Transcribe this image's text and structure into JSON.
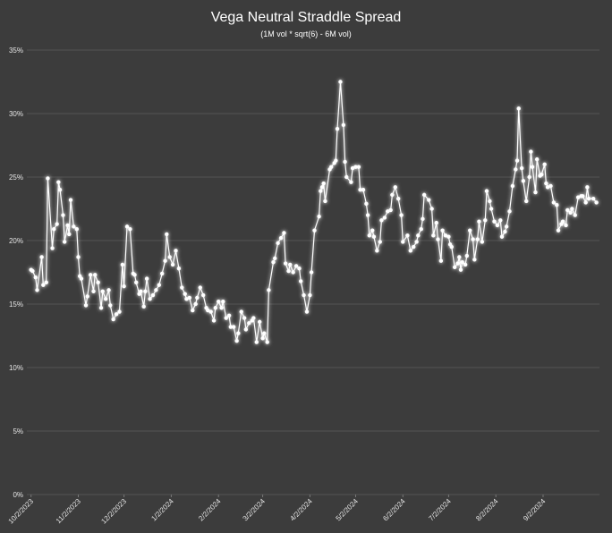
{
  "chart_data": {
    "type": "line",
    "title": "Vega Neutral Straddle Spread",
    "subtitle": "(1M vol * sqrt(6) - 6M vol)",
    "series": [
      {
        "color": "#ffffff",
        "x": [
          "10/2/2023",
          "10/3/2023",
          "10/5/2023",
          "10/6/2023",
          "10/9/2023",
          "10/10/2023",
          "10/12/2023",
          "10/13/2023",
          "10/16/2023",
          "10/17/2023",
          "10/19/2023",
          "10/20/2023",
          "10/21/2023",
          "10/23/2023",
          "10/24/2023",
          "10/26/2023",
          "10/27/2023",
          "10/28/2023",
          "10/30/2023",
          "11/1/2023",
          "11/2/2023",
          "11/3/2023",
          "11/4/2023",
          "11/7/2023",
          "11/8/2023",
          "11/10/2023",
          "11/12/2023",
          "11/13/2023",
          "11/15/2023",
          "11/17/2023",
          "11/18/2023",
          "11/20/2023",
          "11/22/2023",
          "11/23/2023",
          "11/25/2023",
          "11/27/2023",
          "11/29/2023",
          "12/1/2023",
          "12/2/2023",
          "12/4/2023",
          "12/6/2023",
          "12/8/2023",
          "12/9/2023",
          "12/10/2023",
          "12/12/2023",
          "12/13/2023",
          "12/15/2023",
          "12/16/2023",
          "12/17/2023",
          "12/19/2023",
          "12/21/2023",
          "12/23/2023",
          "12/25/2023",
          "12/27/2023",
          "12/29/2023",
          "12/30/2023",
          "1/1/2024",
          "1/3/2024",
          "1/5/2024",
          "1/7/2024",
          "1/9/2024",
          "1/11/2024",
          "1/12/2024",
          "1/14/2024",
          "1/16/2024",
          "1/18/2024",
          "1/19/2024",
          "1/21/2024",
          "1/23/2024",
          "1/25/2024",
          "1/26/2024",
          "1/28/2024",
          "1/30/2024",
          "1/31/2024",
          "2/2/2024",
          "2/4/2024",
          "2/5/2024",
          "2/7/2024",
          "2/9/2024",
          "2/10/2024",
          "2/12/2024",
          "2/14/2024",
          "2/15/2024",
          "2/17/2024",
          "2/19/2024",
          "2/20/2024",
          "2/22/2024",
          "2/24/2024",
          "2/25/2024",
          "2/27/2024",
          "2/29/2024",
          "3/2/2024",
          "3/3/2024",
          "3/5/2024",
          "3/6/2024",
          "3/9/2024",
          "3/10/2024",
          "3/12/2024",
          "3/14/2024",
          "3/16/2024",
          "3/17/2024",
          "3/19/2024",
          "3/20/2024",
          "3/22/2024",
          "3/24/2024",
          "3/26/2024",
          "3/27/2024",
          "3/29/2024",
          "3/31/2024",
          "4/2/2024",
          "4/3/2024",
          "4/5/2024",
          "4/8/2024",
          "4/9/2024",
          "4/10/2024",
          "4/11/2024",
          "4/12/2024",
          "4/15/2024",
          "4/16/2024",
          "4/18/2024",
          "4/19/2024",
          "4/20/2024",
          "4/22/2024",
          "4/24/2024",
          "4/25/2024",
          "4/26/2024",
          "4/29/2024",
          "4/30/2024",
          "5/2/2024",
          "5/4/2024",
          "5/5/2024",
          "5/7/2024",
          "5/9/2024",
          "5/10/2024",
          "5/11/2024",
          "5/13/2024",
          "5/14/2024",
          "5/16/2024",
          "5/18/2024",
          "5/19/2024",
          "5/21/2024",
          "5/23/2024",
          "5/25/2024",
          "5/26/2024",
          "5/28/2024",
          "5/30/2024",
          "6/1/2024",
          "6/2/2024",
          "6/5/2024",
          "6/7/2024",
          "6/9/2024",
          "6/11/2024",
          "6/12/2024",
          "6/14/2024",
          "6/15/2024",
          "6/16/2024",
          "6/19/2024",
          "6/21/2024",
          "6/22/2024",
          "6/24/2024",
          "6/25/2024",
          "6/27/2024",
          "6/28/2024",
          "6/30/2024",
          "7/2/2024",
          "7/3/2024",
          "7/4/2024",
          "7/6/2024",
          "7/8/2024",
          "7/9/2024",
          "7/10/2024",
          "7/11/2024",
          "7/13/2024",
          "7/14/2024",
          "7/16/2024",
          "7/18/2024",
          "7/19/2024",
          "7/21/2024",
          "7/22/2024",
          "7/24/2024",
          "7/26/2024",
          "7/27/2024",
          "7/29/2024",
          "7/30/2024",
          "8/1/2024",
          "8/3/2024",
          "8/5/2024",
          "8/6/2024",
          "8/8/2024",
          "8/9/2024",
          "8/11/2024",
          "8/13/2024",
          "8/15/2024",
          "8/16/2024",
          "8/17/2024",
          "8/19/2024",
          "8/20/2024",
          "8/22/2024",
          "8/24/2024",
          "8/25/2024",
          "8/26/2024",
          "8/28/2024",
          "8/29/2024",
          "8/31/2024",
          "9/1/2024",
          "9/3/2024",
          "9/4/2024",
          "9/5/2024",
          "9/7/2024",
          "9/9/2024",
          "9/11/2024",
          "9/12/2024",
          "9/14/2024",
          "9/15/2024",
          "9/17/2024",
          "9/18/2024",
          "9/20/2024",
          "9/21/2024",
          "9/23/2024",
          "9/25/2024",
          "9/27/2024",
          "9/28/2024",
          "9/30/2024",
          "10/1/2024",
          "10/2/2024",
          "10/5/2024",
          "10/7/2024"
        ],
        "values": [
          17.7,
          17.6,
          17.1,
          16.1,
          18.7,
          16.5,
          16.7,
          24.9,
          19.4,
          20.9,
          21.3,
          24.6,
          24.0,
          22.0,
          19.9,
          21.2,
          20.5,
          23.2,
          21.1,
          20.9,
          18.7,
          17.2,
          17.0,
          14.9,
          15.6,
          17.3,
          16.0,
          17.3,
          16.7,
          14.7,
          16.0,
          15.4,
          16.1,
          14.9,
          13.8,
          14.2,
          14.4,
          18.1,
          16.4,
          21.1,
          20.9,
          17.4,
          17.3,
          16.7,
          15.8,
          16.0,
          14.8,
          16.0,
          17.0,
          15.4,
          15.7,
          16.1,
          16.5,
          17.4,
          18.4,
          20.5,
          18.7,
          18.1,
          19.2,
          17.8,
          16.3,
          15.8,
          15.4,
          15.5,
          14.5,
          15.0,
          15.5,
          16.3,
          15.7,
          14.7,
          14.5,
          14.4,
          13.7,
          14.7,
          15.2,
          14.7,
          15.2,
          13.9,
          14.1,
          13.2,
          13.2,
          12.1,
          12.7,
          14.4,
          13.9,
          13.0,
          13.5,
          13.7,
          13.9,
          12.0,
          13.6,
          12.3,
          12.7,
          12.0,
          16.1,
          18.3,
          18.6,
          19.8,
          20.2,
          20.6,
          18.2,
          17.6,
          18.1,
          17.5,
          18.0,
          17.8,
          16.8,
          15.7,
          14.4,
          15.7,
          17.5,
          20.8,
          21.9,
          23.9,
          24.2,
          24.5,
          23.1,
          25.6,
          25.8,
          26.1,
          26.3,
          28.8,
          32.5,
          29.1,
          26.2,
          25.0,
          24.6,
          25.7,
          25.8,
          25.8,
          24.0,
          24.0,
          22.9,
          22.0,
          20.4,
          20.8,
          20.3,
          19.2,
          19.9,
          21.6,
          21.8,
          22.3,
          22.4,
          23.6,
          24.2,
          23.3,
          22.0,
          19.9,
          20.4,
          19.2,
          19.5,
          19.9,
          20.4,
          20.9,
          21.7,
          23.6,
          23.2,
          22.5,
          20.4,
          21.4,
          20.1,
          18.4,
          20.8,
          20.4,
          20.3,
          19.7,
          19.5,
          17.9,
          18.2,
          18.7,
          17.7,
          18.3,
          18.1,
          18.8,
          20.8,
          20.1,
          18.5,
          20.1,
          21.5,
          19.9,
          21.6,
          23.9,
          23.1,
          22.5,
          21.5,
          21.2,
          21.6,
          20.3,
          20.7,
          21.1,
          22.3,
          24.3,
          25.6,
          26.3,
          30.4,
          25.7,
          24.7,
          23.1,
          25.0,
          27.0,
          25.8,
          23.8,
          26.4,
          25.1,
          25.2,
          26.0,
          24.5,
          24.2,
          24.3,
          23.0,
          22.8,
          20.8,
          21.3,
          21.5,
          21.2,
          22.4,
          22.2,
          22.5,
          22.0,
          23.4,
          23.5,
          23.5,
          23.0,
          24.2,
          23.3,
          23.3,
          23.0
        ]
      }
    ],
    "xlim": [
      "10/1/2023",
      "10/9/2024"
    ],
    "xticks": [
      "10/2/2023",
      "11/2/2023",
      "12/2/2023",
      "1/2/2024",
      "2/2/2024",
      "3/2/2024",
      "4/2/2024",
      "5/2/2024",
      "6/2/2024",
      "7/2/2024",
      "8/2/2024",
      "9/2/2024"
    ],
    "ylim": [
      0,
      35
    ],
    "yticks": [
      {
        "value": 0,
        "label": "0%"
      },
      {
        "value": 5,
        "label": "5%"
      },
      {
        "value": 10,
        "label": "10%"
      },
      {
        "value": 15,
        "label": "15%"
      },
      {
        "value": 20,
        "label": "20%"
      },
      {
        "value": 25,
        "label": "25%"
      },
      {
        "value": 30,
        "label": "30%"
      },
      {
        "value": 35,
        "label": "35%"
      }
    ],
    "grid": true
  }
}
